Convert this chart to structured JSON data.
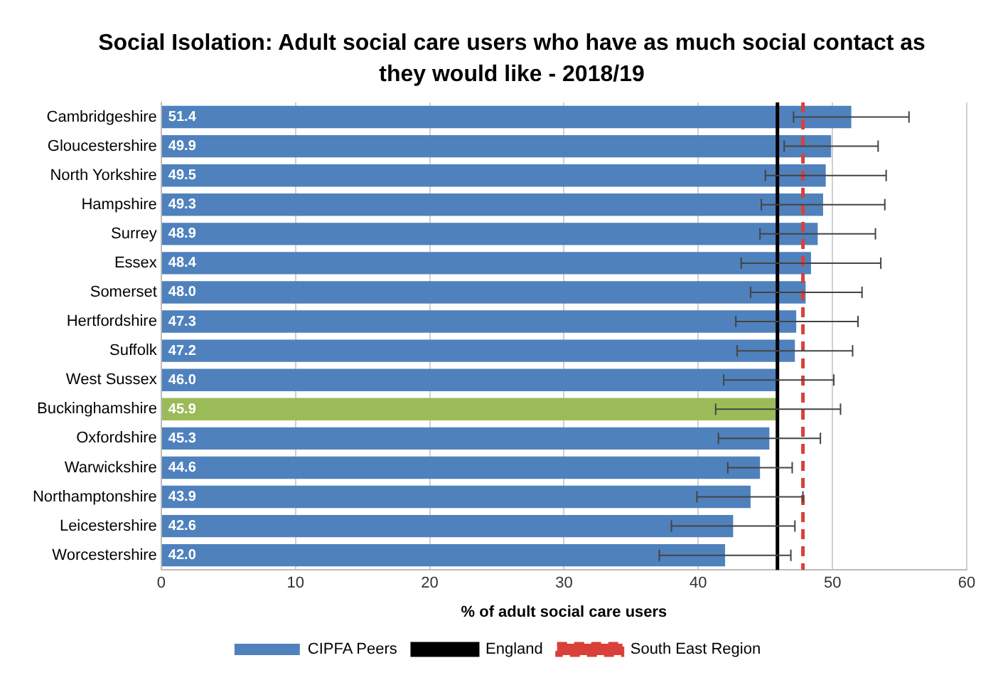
{
  "chart_data": {
    "type": "bar",
    "orientation": "horizontal",
    "title": "Social Isolation: Adult social care users who have as much social contact as they would like - 2018/19",
    "xlabel": "% of adult social care users",
    "categories": [
      "Cambridgeshire",
      "Gloucestershire",
      "North Yorkshire",
      "Hampshire",
      "Surrey",
      "Essex",
      "Somerset",
      "Hertfordshire",
      "Suffolk",
      "West Sussex",
      "Buckinghamshire",
      "Oxfordshire",
      "Warwickshire",
      "Northamptonshire",
      "Leicestershire",
      "Worcestershire"
    ],
    "series": [
      {
        "name": "CIPFA Peers",
        "color": "#4f81bd",
        "colors": [
          "#4f81bd",
          "#4f81bd",
          "#4f81bd",
          "#4f81bd",
          "#4f81bd",
          "#4f81bd",
          "#4f81bd",
          "#4f81bd",
          "#4f81bd",
          "#4f81bd",
          "#9bbb59",
          "#4f81bd",
          "#4f81bd",
          "#4f81bd",
          "#4f81bd",
          "#4f81bd"
        ],
        "values": [
          51.4,
          49.9,
          49.5,
          49.3,
          48.9,
          48.4,
          48.0,
          47.3,
          47.2,
          46.0,
          45.9,
          45.3,
          44.6,
          43.9,
          42.6,
          42.0
        ],
        "errors": [
          [
            47.1,
            55.7
          ],
          [
            46.4,
            53.4
          ],
          [
            45.0,
            54.0
          ],
          [
            44.7,
            53.9
          ],
          [
            44.6,
            53.2
          ],
          [
            43.2,
            53.6
          ],
          [
            43.9,
            52.2
          ],
          [
            42.8,
            51.9
          ],
          [
            42.9,
            51.5
          ],
          [
            41.9,
            50.1
          ],
          [
            41.3,
            50.6
          ],
          [
            41.5,
            49.1
          ],
          [
            42.2,
            47.0
          ],
          [
            39.9,
            47.8
          ],
          [
            38.0,
            47.2
          ],
          [
            37.1,
            46.9
          ]
        ]
      }
    ],
    "value_labels": [
      "51.4",
      "49.9",
      "49.5",
      "49.3",
      "48.9",
      "48.4",
      "48.0",
      "47.3",
      "47.2",
      "46.0",
      "45.9",
      "45.3",
      "44.6",
      "43.9",
      "42.6",
      "42.0"
    ],
    "ref_lines": [
      {
        "axis": "x",
        "value": 45.9,
        "label": "England",
        "color": "#000000",
        "line_style": "solid"
      },
      {
        "axis": "x",
        "value": 47.8,
        "label": "South East Region",
        "color": "#d9403a",
        "line_style": "dashed"
      }
    ],
    "xlim": [
      0,
      60
    ],
    "xticks": [
      0,
      10,
      20,
      30,
      40,
      50,
      60
    ],
    "grid": "x",
    "legend": "bottom"
  }
}
